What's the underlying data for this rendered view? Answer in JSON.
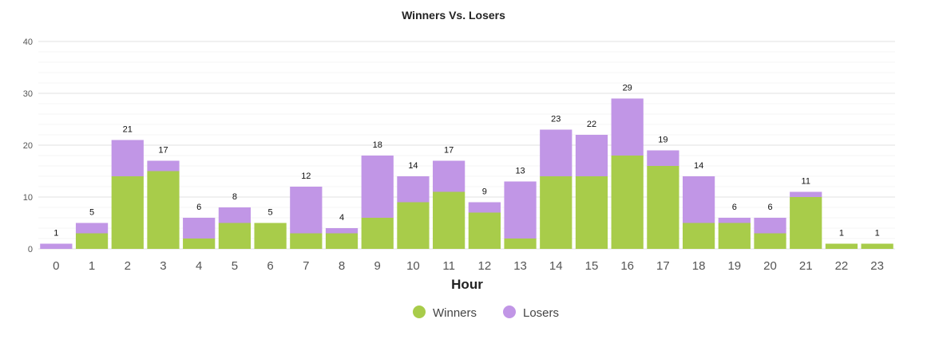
{
  "chart_data": {
    "type": "bar",
    "stacked": true,
    "title": "Winners Vs. Losers",
    "xlabel": "Hour",
    "ylabel": "",
    "ylim": [
      0,
      40
    ],
    "yticks": [
      0,
      10,
      20,
      30,
      40
    ],
    "grid": true,
    "legend_position": "bottom-center",
    "categories": [
      "0",
      "1",
      "2",
      "3",
      "4",
      "5",
      "6",
      "7",
      "8",
      "9",
      "10",
      "11",
      "12",
      "13",
      "14",
      "15",
      "16",
      "17",
      "18",
      "19",
      "20",
      "21",
      "22",
      "23"
    ],
    "series": [
      {
        "name": "Winners",
        "color": "#a8cc4a",
        "values": [
          0,
          3,
          14,
          15,
          2,
          5,
          5,
          3,
          3,
          6,
          9,
          11,
          7,
          2,
          14,
          14,
          18,
          16,
          5,
          5,
          3,
          10,
          1,
          1
        ]
      },
      {
        "name": "Losers",
        "color": "#c196e6",
        "values": [
          1,
          2,
          7,
          2,
          4,
          3,
          0,
          9,
          1,
          12,
          5,
          6,
          2,
          11,
          9,
          8,
          11,
          3,
          9,
          1,
          3,
          1,
          0,
          0
        ]
      }
    ],
    "totals": [
      1,
      5,
      21,
      17,
      6,
      8,
      5,
      12,
      4,
      18,
      14,
      17,
      9,
      13,
      23,
      22,
      29,
      19,
      14,
      6,
      6,
      11,
      1,
      1
    ]
  }
}
